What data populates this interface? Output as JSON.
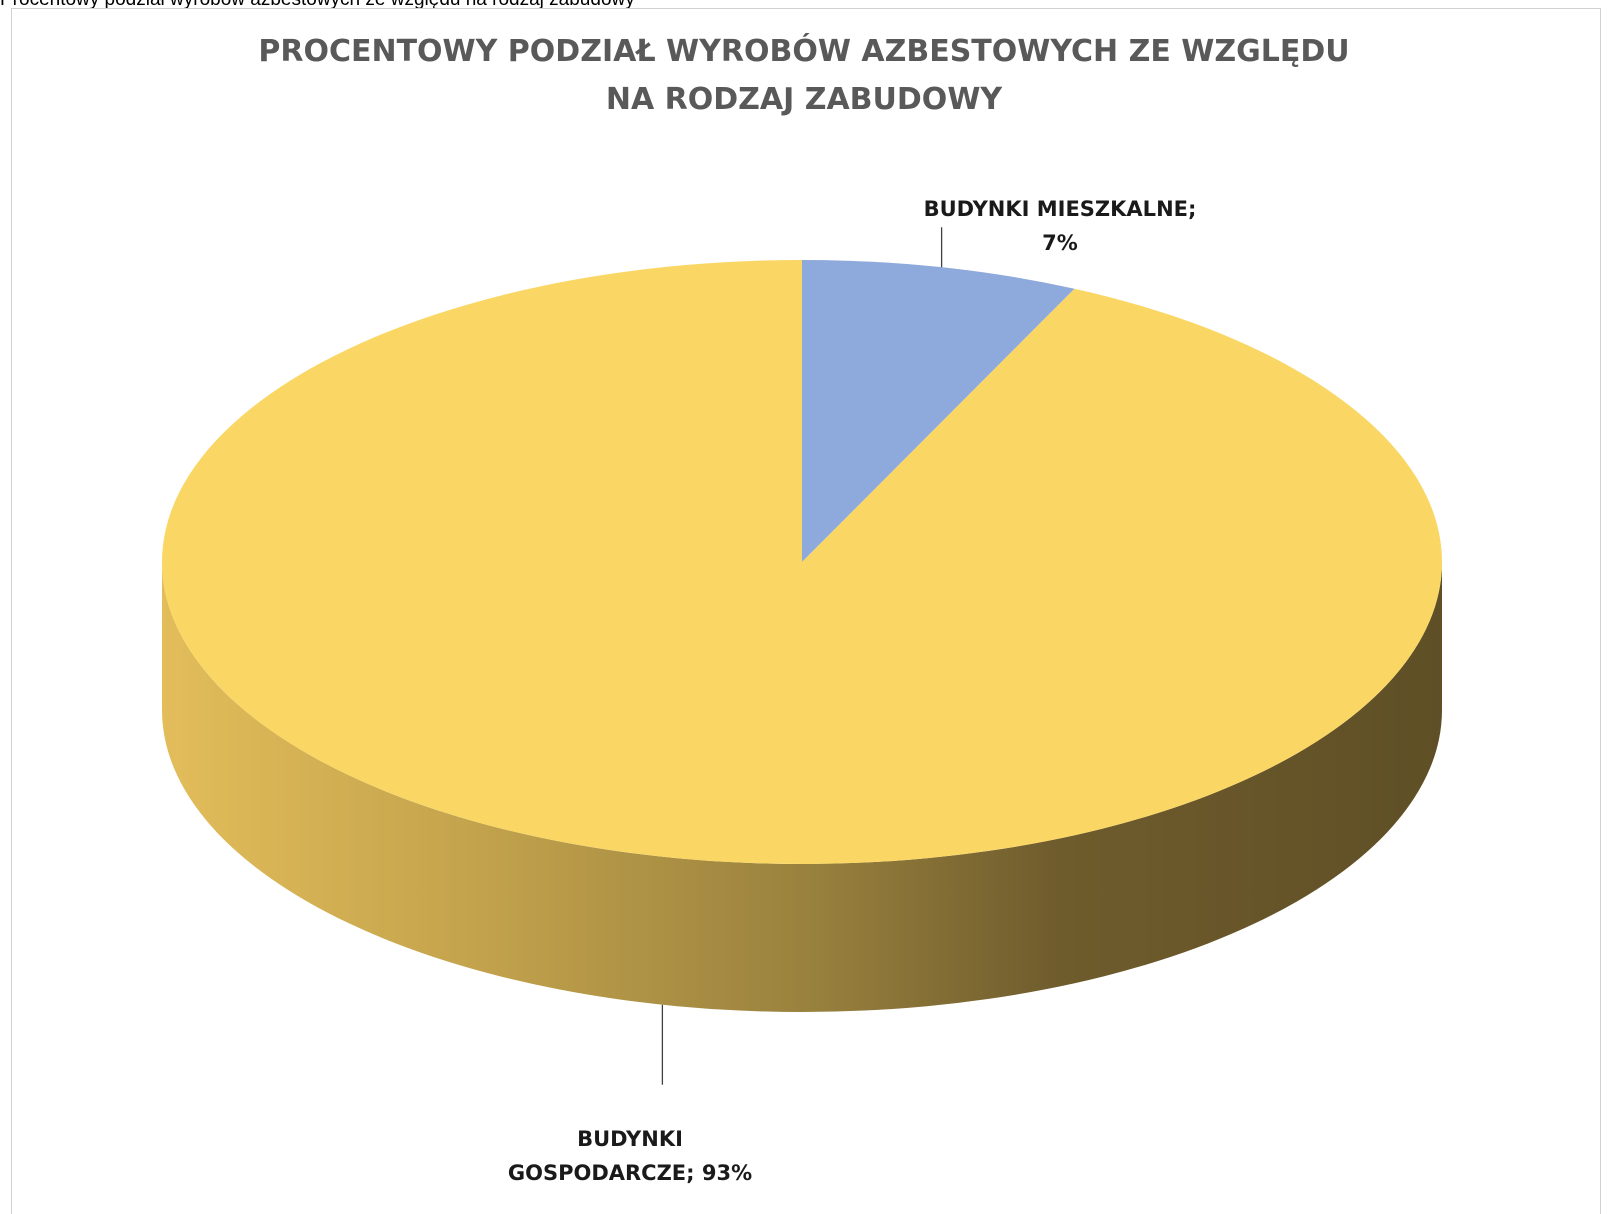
{
  "caption": "Procentowy podział wyrobów azbestowych ze względu na rodzaj zabudowy",
  "chart_data": {
    "type": "pie",
    "title": "PROCENTOWY PODZIAŁ WYROBÓW AZBESTOWYCH ZE WZGLĘDU NA RODZAJ ZABUDOWY",
    "title_lines": [
      "PROCENTOWY PODZIAŁ WYROBÓW AZBESTOWYCH ZE WZGLĘDU",
      "NA RODZAJ ZABUDOWY"
    ],
    "style": "3d",
    "legend": "none",
    "slices": [
      {
        "label": "BUDYNKI MIESZKALNE",
        "value": 7,
        "label_lines": [
          "BUDYNKI MIESZKALNE;",
          "7%"
        ],
        "color": "#8EA9DB"
      },
      {
        "label": "BUDYNKI GOSPODARCZE",
        "value": 93,
        "label_lines": [
          "BUDYNKI",
          "GOSPODARCZE; 93%"
        ],
        "color": "#FAD764"
      }
    ]
  }
}
